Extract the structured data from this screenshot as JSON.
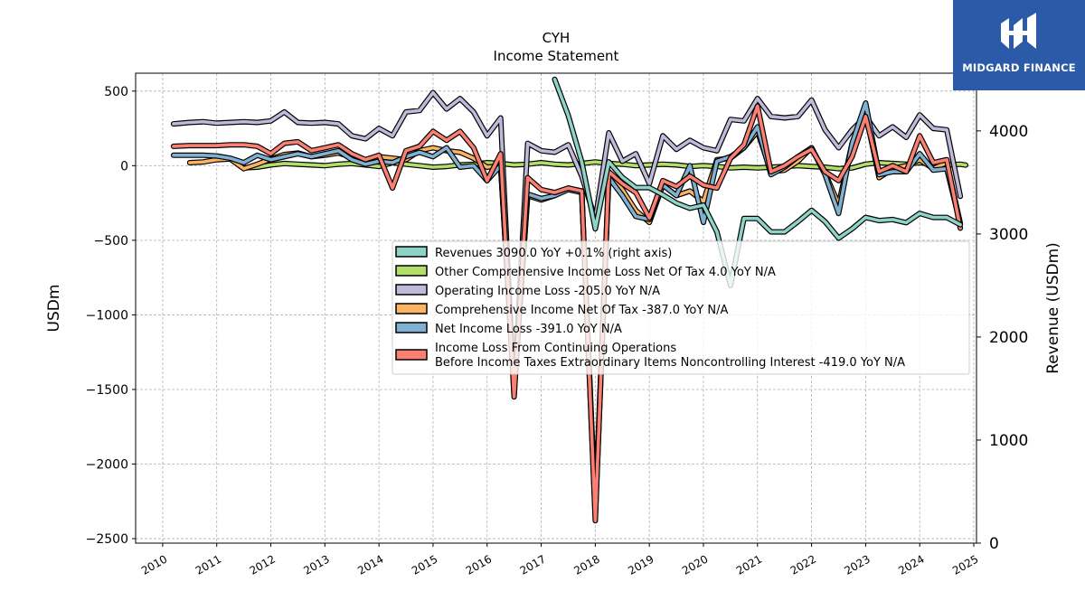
{
  "chart_data": {
    "type": "line",
    "title": "CYH",
    "subtitle": "Income Statement",
    "ylabel": "USDm",
    "y2label": "Revenue (USDm)",
    "ylim": [
      -2530,
      620
    ],
    "y2lim": [
      0,
      4560
    ],
    "xlim": [
      2009.5,
      2025.05
    ],
    "xticks": [
      "2010",
      "2011",
      "2012",
      "2013",
      "2014",
      "2015",
      "2016",
      "2017",
      "2018",
      "2019",
      "2020",
      "2021",
      "2022",
      "2023",
      "2024",
      "2025"
    ],
    "yticks": [
      "500",
      "0",
      "−500",
      "−1000",
      "−1500",
      "−2000",
      "−2500"
    ],
    "y2ticks": [
      "4000",
      "3000",
      "2000",
      "1000",
      "0"
    ],
    "grid": true,
    "legend_position": "center-right",
    "series": [
      {
        "name": "Revenues  3090.0 YoY +0.1% (right axis)",
        "color": "#8dd3c7",
        "axis": "right",
        "x": [
          2017.25,
          2017.5,
          2017.75,
          2018.0,
          2018.25,
          2018.5,
          2018.75,
          2019.0,
          2019.25,
          2019.5,
          2019.75,
          2020.0,
          2020.25,
          2020.5,
          2020.75,
          2021.0,
          2021.25,
          2021.5,
          2021.75,
          2022.0,
          2022.25,
          2022.5,
          2022.75,
          2023.0,
          2023.25,
          2023.5,
          2023.75,
          2024.0,
          2024.25,
          2024.5,
          2024.75
        ],
        "y": [
          4500,
          4150,
          3700,
          3050,
          3700,
          3550,
          3450,
          3450,
          3380,
          3300,
          3250,
          3280,
          3020,
          2500,
          3150,
          3150,
          3020,
          3020,
          3120,
          3230,
          3120,
          2960,
          3050,
          3160,
          3130,
          3140,
          3110,
          3200,
          3160,
          3160,
          3090
        ]
      },
      {
        "name": "Other Comprehensive Income Loss Net Of Tax  4.0 YoY N/A",
        "color": "#b3de69",
        "axis": "left",
        "x": [
          2011.5,
          2011.75,
          2012.0,
          2012.25,
          2012.5,
          2012.75,
          2013.0,
          2013.25,
          2013.5,
          2013.75,
          2014.0,
          2014.25,
          2014.5,
          2014.75,
          2015.0,
          2015.25,
          2015.5,
          2015.75,
          2016.0,
          2016.25,
          2016.5,
          2016.75,
          2017.0,
          2017.25,
          2017.5,
          2017.75,
          2018.0,
          2018.25,
          2018.5,
          2018.75,
          2019.0,
          2019.25,
          2019.5,
          2019.75,
          2020.0,
          2020.25,
          2020.5,
          2020.75,
          2021.0,
          2021.25,
          2021.5,
          2021.75,
          2022.0,
          2022.25,
          2022.5,
          2022.75,
          2023.0,
          2023.25,
          2023.5,
          2023.75,
          2024.0,
          2024.25,
          2024.5,
          2024.75,
          2024.85
        ],
        "y": [
          -15,
          -10,
          5,
          15,
          10,
          5,
          0,
          10,
          15,
          5,
          -5,
          20,
          10,
          0,
          -10,
          -5,
          5,
          10,
          20,
          15,
          5,
          10,
          20,
          10,
          5,
          15,
          25,
          15,
          10,
          0,
          5,
          10,
          5,
          -5,
          0,
          -5,
          -15,
          -10,
          -15,
          -10,
          -5,
          0,
          -5,
          -10,
          -20,
          -15,
          10,
          20,
          15,
          10,
          20,
          10,
          5,
          10,
          4
        ]
      },
      {
        "name": "Operating Income Loss  -205.0 YoY N/A",
        "color": "#bebada",
        "axis": "left",
        "x": [
          2010.2,
          2010.5,
          2010.75,
          2011.0,
          2011.25,
          2011.5,
          2011.75,
          2012.0,
          2012.25,
          2012.5,
          2012.75,
          2013.0,
          2013.25,
          2013.5,
          2013.75,
          2014.0,
          2014.25,
          2014.5,
          2014.75,
          2015.0,
          2015.25,
          2015.5,
          2015.75,
          2016.0,
          2016.25,
          2016.5,
          2016.75,
          2017.0,
          2017.25,
          2017.5,
          2017.75,
          2018.0,
          2018.25,
          2018.5,
          2018.75,
          2019.0,
          2019.25,
          2019.5,
          2019.75,
          2020.0,
          2020.25,
          2020.5,
          2020.75,
          2021.0,
          2021.25,
          2021.5,
          2021.75,
          2022.0,
          2022.25,
          2022.5,
          2022.75,
          2023.0,
          2023.25,
          2023.5,
          2023.75,
          2024.0,
          2024.25,
          2024.5,
          2024.75
        ],
        "y": [
          280,
          290,
          295,
          285,
          290,
          295,
          290,
          300,
          360,
          290,
          285,
          290,
          280,
          200,
          180,
          250,
          200,
          360,
          370,
          490,
          380,
          450,
          360,
          200,
          320,
          -1540,
          150,
          100,
          90,
          140,
          -70,
          -360,
          220,
          30,
          80,
          -120,
          200,
          110,
          170,
          120,
          100,
          310,
          300,
          450,
          330,
          320,
          330,
          440,
          240,
          120,
          240,
          330,
          200,
          260,
          190,
          340,
          250,
          240,
          -205
        ]
      },
      {
        "name": "Comprehensive Income Net Of Tax  -387.0 YoY N/A",
        "color": "#fdb462",
        "axis": "left",
        "x": [
          2010.5,
          2010.75,
          2011.0,
          2011.25,
          2011.5,
          2011.75,
          2012.0,
          2012.25,
          2012.5,
          2012.75,
          2013.0,
          2013.25,
          2013.5,
          2013.75,
          2014.0,
          2014.25,
          2014.5,
          2014.75,
          2015.0,
          2015.25,
          2015.5,
          2015.75,
          2016.0,
          2016.25,
          2016.5,
          2016.75,
          2017.0,
          2017.25,
          2017.5,
          2017.75,
          2018.0,
          2018.25,
          2018.5,
          2018.75,
          2019.0,
          2019.25,
          2019.5,
          2019.75,
          2020.0,
          2020.25,
          2020.5,
          2020.75,
          2021.0,
          2021.25,
          2021.5,
          2021.75,
          2022.0,
          2022.25,
          2022.5,
          2022.75,
          2023.0,
          2023.25,
          2023.5,
          2023.75,
          2024.0,
          2024.25,
          2024.5,
          2024.75
        ],
        "y": [
          20,
          25,
          40,
          45,
          -20,
          10,
          45,
          75,
          85,
          60,
          70,
          85,
          55,
          20,
          60,
          50,
          40,
          100,
          120,
          100,
          90,
          50,
          -10,
          0,
          -1480,
          -200,
          -230,
          -200,
          -150,
          -170,
          -2300,
          -50,
          -160,
          -300,
          -380,
          -130,
          -200,
          -170,
          -240,
          40,
          50,
          120,
          230,
          -40,
          -30,
          30,
          120,
          -50,
          -260,
          150,
          350,
          -80,
          -20,
          0,
          40,
          -20,
          20,
          -387
        ]
      },
      {
        "name": "Net Income Loss  -391.0 YoY N/A",
        "color": "#80b1d3",
        "axis": "left",
        "x": [
          2010.2,
          2010.5,
          2010.75,
          2011.0,
          2011.25,
          2011.5,
          2011.75,
          2012.0,
          2012.25,
          2012.5,
          2012.75,
          2013.0,
          2013.25,
          2013.5,
          2013.75,
          2014.0,
          2014.25,
          2014.5,
          2014.75,
          2015.0,
          2015.25,
          2015.5,
          2015.75,
          2016.0,
          2016.25,
          2016.5,
          2016.75,
          2017.0,
          2017.25,
          2017.5,
          2017.75,
          2018.0,
          2018.25,
          2018.5,
          2018.75,
          2019.0,
          2019.25,
          2019.5,
          2019.75,
          2020.0,
          2020.25,
          2020.5,
          2020.75,
          2021.0,
          2021.25,
          2021.5,
          2021.75,
          2022.0,
          2022.25,
          2022.5,
          2022.75,
          2023.0,
          2023.25,
          2023.5,
          2023.75,
          2024.0,
          2024.25,
          2024.5,
          2024.75
        ],
        "y": [
          70,
          70,
          70,
          65,
          50,
          20,
          70,
          40,
          60,
          80,
          60,
          80,
          100,
          40,
          10,
          30,
          20,
          60,
          90,
          60,
          120,
          -10,
          0,
          -100,
          0,
          -1500,
          -190,
          -220,
          -200,
          -160,
          -180,
          -2350,
          -80,
          -200,
          -340,
          -360,
          -130,
          -200,
          0,
          -380,
          30,
          60,
          120,
          260,
          -60,
          -10,
          60,
          120,
          -60,
          -320,
          150,
          420,
          -60,
          -40,
          -40,
          80,
          -30,
          -20,
          -391
        ]
      },
      {
        "name": "Income Loss From Continuing Operations\nBefore Income Taxes Extraordinary Items Noncontrolling Interest  -419.0 YoY N/A",
        "color": "#fb8072",
        "axis": "left",
        "x": [
          2010.2,
          2010.5,
          2010.75,
          2011.0,
          2011.25,
          2011.5,
          2011.75,
          2012.0,
          2012.25,
          2012.5,
          2012.75,
          2013.0,
          2013.25,
          2013.5,
          2013.75,
          2014.0,
          2014.25,
          2014.5,
          2014.75,
          2015.0,
          2015.25,
          2015.5,
          2015.75,
          2016.0,
          2016.25,
          2016.5,
          2016.75,
          2017.0,
          2017.25,
          2017.5,
          2017.75,
          2018.0,
          2018.25,
          2018.5,
          2018.75,
          2019.0,
          2019.25,
          2019.5,
          2019.75,
          2020.0,
          2020.25,
          2020.5,
          2020.75,
          2021.0,
          2021.25,
          2021.5,
          2021.75,
          2022.0,
          2022.25,
          2022.5,
          2022.75,
          2023.0,
          2023.25,
          2023.5,
          2023.75,
          2024.0,
          2024.25,
          2024.5,
          2024.75
        ],
        "y": [
          130,
          135,
          135,
          135,
          140,
          140,
          130,
          80,
          150,
          160,
          100,
          120,
          140,
          80,
          40,
          70,
          -150,
          100,
          130,
          230,
          170,
          230,
          120,
          -100,
          80,
          -1550,
          -80,
          -160,
          -180,
          -150,
          -170,
          -2380,
          -40,
          -120,
          -180,
          -350,
          -100,
          -140,
          -70,
          -130,
          -150,
          50,
          140,
          400,
          -40,
          0,
          60,
          110,
          -40,
          -100,
          60,
          330,
          -40,
          0,
          -40,
          200,
          20,
          40,
          -419
        ]
      }
    ]
  },
  "logo": {
    "text": "MIDGARD FINANCE"
  }
}
